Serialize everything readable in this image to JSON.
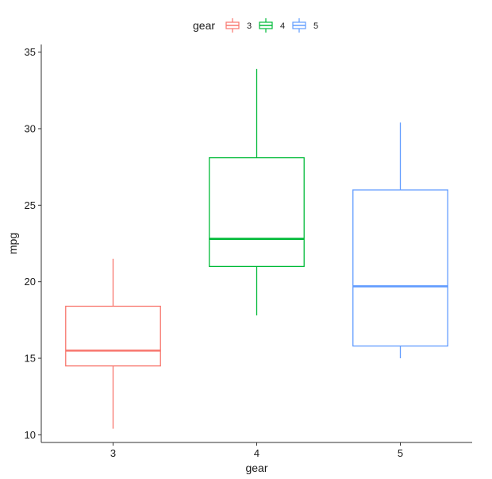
{
  "chart_data": {
    "type": "boxplot",
    "title": "",
    "xlabel": "gear",
    "ylabel": "mpg",
    "ylim": [
      9.5,
      35.5
    ],
    "yticks": [
      10,
      15,
      20,
      25,
      30,
      35
    ],
    "grid": false,
    "legend": {
      "title": "gear",
      "position": "top",
      "entries": [
        {
          "label": "3",
          "color": "#F8766D"
        },
        {
          "label": "4",
          "color": "#00BA38"
        },
        {
          "label": "5",
          "color": "#619CFF"
        }
      ]
    },
    "categories": [
      "3",
      "4",
      "5"
    ],
    "boxes": [
      {
        "category": "3",
        "color": "#F8766D",
        "min": 10.4,
        "q1": 14.5,
        "median": 15.5,
        "q3": 18.4,
        "max": 21.5
      },
      {
        "category": "4",
        "color": "#00BA38",
        "min": 17.8,
        "q1": 21.0,
        "median": 22.8,
        "q3": 28.1,
        "max": 33.9
      },
      {
        "category": "5",
        "color": "#619CFF",
        "min": 15.0,
        "q1": 15.8,
        "median": 19.7,
        "q3": 26.0,
        "max": 30.4
      }
    ]
  }
}
